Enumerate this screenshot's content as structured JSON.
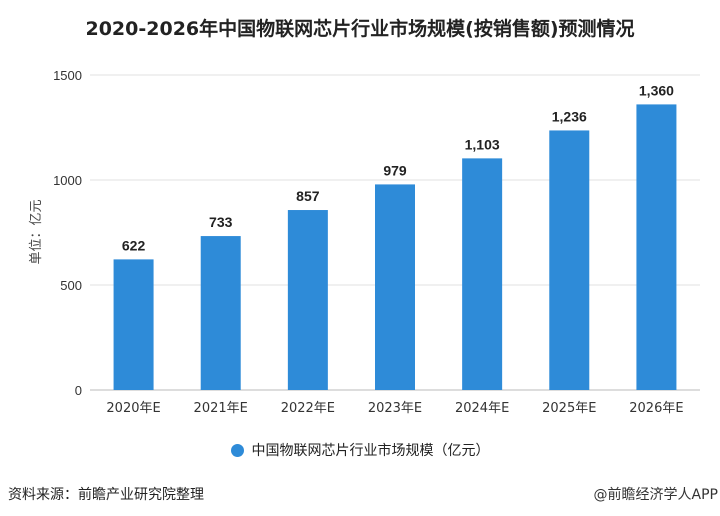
{
  "title": "2020-2026年中国物联网芯片行业市场规模(按销售额)预测情况",
  "source": "资料来源：前瞻产业研究院整理",
  "credit": "@前瞻经济学人APP",
  "chart_data": {
    "type": "bar",
    "title": "2020-2026年中国物联网芯片行业市场规模(按销售额)预测情况",
    "categories": [
      "2020年E",
      "2021年E",
      "2022年E",
      "2023年E",
      "2024年E",
      "2025年E",
      "2026年E"
    ],
    "series": [
      {
        "name": "中国物联网芯片行业市场规模（亿元）",
        "values": [
          622,
          733,
          857,
          979,
          1103,
          1236,
          1360
        ],
        "color": "#2e8bd8"
      }
    ],
    "data_labels": [
      "622",
      "733",
      "857",
      "979",
      "1,103",
      "1,236",
      "1,360"
    ],
    "ylabel": "单位：亿元",
    "xlabel": "",
    "ylim": [
      0,
      1500
    ],
    "yticks": [
      0,
      500,
      1000,
      1500
    ],
    "grid": true,
    "legend_position": "bottom"
  }
}
